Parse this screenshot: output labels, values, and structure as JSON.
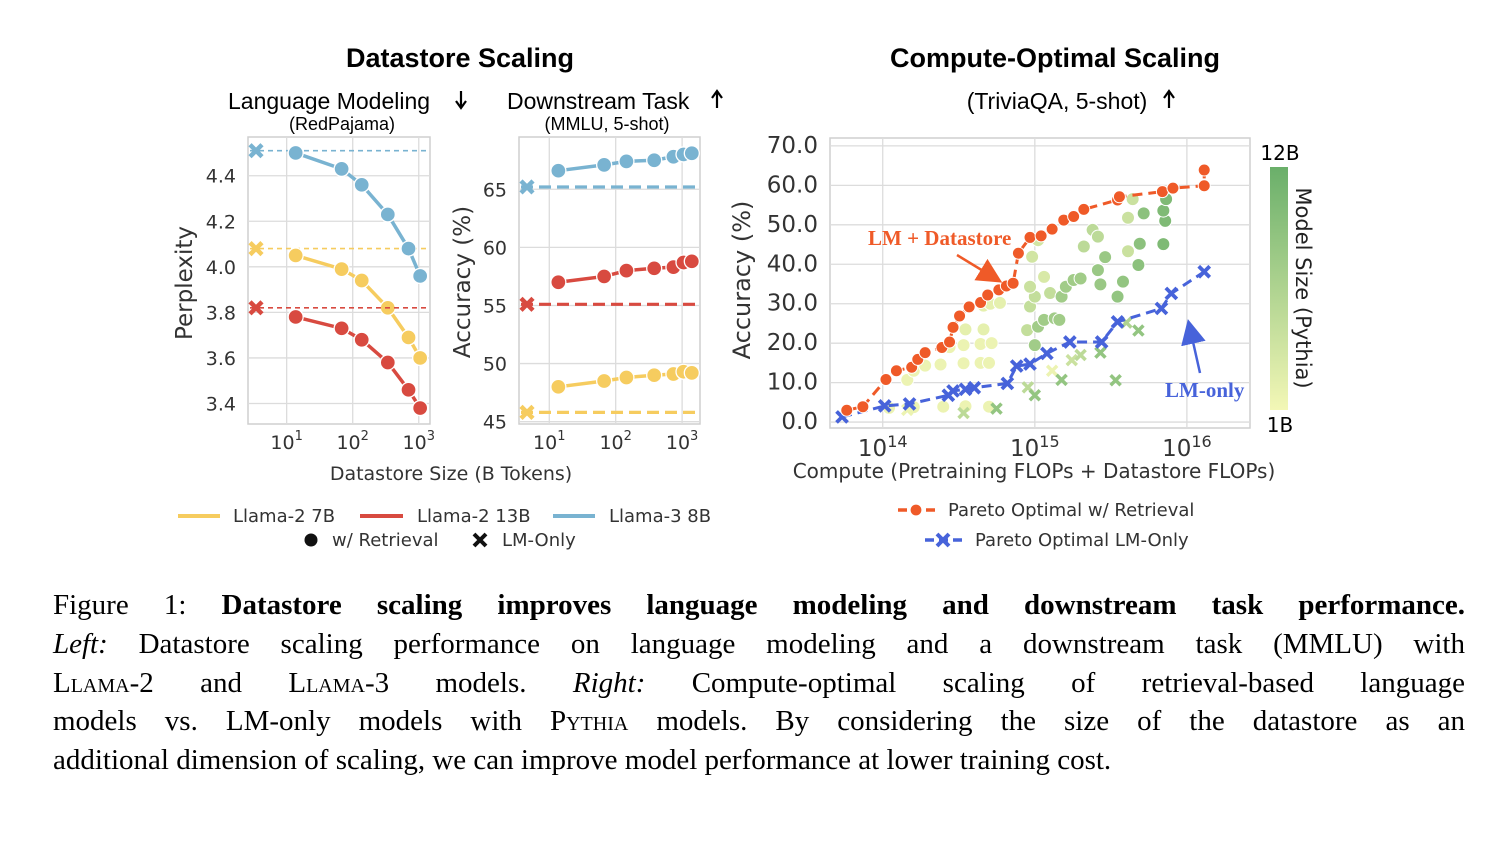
{
  "titles": {
    "left": "Datastore Scaling",
    "right": "Compute-Optimal Scaling",
    "lm_sub": "Language Modeling",
    "lm_sub2": "(RedPajama)",
    "ds_sub": "Downstream Task",
    "ds_sub2": "(MMLU, 5-shot)",
    "right_sub": "(TriviaQA, 5-shot)"
  },
  "legend_left": {
    "series": [
      "Llama-2 7B",
      "Llama-2 13B",
      "Llama-3 8B"
    ],
    "markers": [
      "w/ Retrieval",
      "LM-Only"
    ]
  },
  "legend_right": [
    "Pareto Optimal w/ Retrieval",
    "Pareto Optimal LM-Only"
  ],
  "annotations": {
    "retrieval": "LM + Datastore",
    "lm_only": "LM-only"
  },
  "colorbar": {
    "label": "Model Size (Pythia)",
    "max": "12B",
    "min": "1B",
    "colors": [
      "#f3f7b6",
      "#6aaf6a"
    ]
  },
  "colors": {
    "llama2_7b": "#f6cc5f",
    "llama2_13b": "#d84a40",
    "llama3_8b": "#79b3d1",
    "pareto_retrieval": "#ef5a28",
    "pareto_lm": "#4763da"
  },
  "chart_data": [
    {
      "type": "line",
      "title": "Language Modeling",
      "subtitle": "(RedPajama)",
      "xlabel": "Datastore Size (B Tokens)",
      "ylabel": "Perplexity",
      "xscale": "log",
      "xlim": [
        2.6,
        1480
      ],
      "ylim": [
        3.31,
        4.57
      ],
      "x_ticks": [
        "1",
        "2",
        "3"
      ],
      "y_ticks": [
        "3.4",
        "3.6",
        "3.8",
        "4.0",
        "4.2",
        "4.4"
      ],
      "grid": true,
      "x": [
        13.7,
        68,
        137,
        340,
        700,
        1050
      ],
      "series": [
        {
          "name": "Llama-2 7B",
          "color": "#f6cc5f",
          "values": [
            4.05,
            3.99,
            3.94,
            3.82,
            3.69,
            3.6
          ],
          "lm_only": 4.08
        },
        {
          "name": "Llama-2 13B",
          "color": "#d84a40",
          "values": [
            3.78,
            3.73,
            3.68,
            3.58,
            3.46,
            3.38
          ],
          "lm_only": 3.82
        },
        {
          "name": "Llama-3 8B",
          "color": "#79b3d1",
          "values": [
            4.5,
            4.43,
            4.36,
            4.23,
            4.08,
            3.96
          ],
          "lm_only": 4.51
        }
      ]
    },
    {
      "type": "line",
      "title": "Downstream Task",
      "subtitle": "(MMLU, 5-shot)",
      "xlabel": "Datastore Size (B Tokens)",
      "ylabel": "Accuracy (%)",
      "xscale": "log",
      "xlim": [
        3.5,
        1860
      ],
      "ylim": [
        44.8,
        69.5
      ],
      "x_ticks": [
        "1",
        "2",
        "3"
      ],
      "y_ticks": [
        "45",
        "50",
        "55",
        "60",
        "65"
      ],
      "grid": true,
      "x": [
        13.7,
        67,
        145,
        380,
        740,
        1050,
        1400
      ],
      "series": [
        {
          "name": "Llama-2 7B",
          "color": "#f6cc5f",
          "values": [
            48.0,
            48.5,
            48.8,
            49.0,
            49.1,
            49.3,
            49.2
          ],
          "lm_only": 45.8
        },
        {
          "name": "Llama-2 13B",
          "color": "#d84a40",
          "values": [
            57.0,
            57.5,
            58.0,
            58.2,
            58.3,
            58.7,
            58.8
          ],
          "lm_only": 55.1
        },
        {
          "name": "Llama-3 8B",
          "color": "#79b3d1",
          "values": [
            66.6,
            67.1,
            67.4,
            67.5,
            67.8,
            68.0,
            68.1
          ],
          "lm_only": 65.2
        }
      ]
    },
    {
      "type": "scatter",
      "title": "Compute-Optimal Scaling",
      "subtitle": "(TriviaQA, 5-shot)",
      "xlabel": "Compute (Pretraining FLOPs + Datastore FLOPs)",
      "ylabel": "Accuracy (%)",
      "xscale": "log",
      "xlim": [
        45000000000000.0,
        2.6e+16
      ],
      "ylim": [
        -1.5,
        72
      ],
      "x_ticks": [
        "14",
        "15",
        "16"
      ],
      "y_ticks": [
        "0.0",
        "10.0",
        "20.0",
        "30.0",
        "40.0",
        "50.0",
        "60.0",
        "70.0"
      ],
      "grid": true,
      "pareto_retrieval": {
        "name": "Pareto Optimal w/ Retrieval",
        "x": [
          58000000000000.0,
          74000000000000.0,
          105000000000000.0,
          123000000000000.0,
          155000000000000.0,
          170000000000000.0,
          190000000000000.0,
          245000000000000.0,
          275000000000000.0,
          290000000000000.0,
          320000000000000.0,
          370000000000000.0,
          440000000000000.0,
          490000000000000.0,
          580000000000000.0,
          650000000000000.0,
          720000000000000.0,
          780000000000000.0,
          930000000000000.0,
          1100000000000000.0,
          1300000000000000.0,
          1550000000000000.0,
          1800000000000000.0,
          2100000000000000.0,
          3500000000000000.0,
          3600000000000000.0,
          6900000000000000.0,
          8100000000000000.0,
          1.3e+16,
          1.3e+16
        ],
        "y": [
          3.0,
          3.9,
          10.8,
          13.0,
          13.9,
          15.9,
          17.6,
          18.9,
          20.3,
          24.0,
          26.9,
          29.2,
          30.3,
          32.2,
          33.5,
          34.5,
          35.2,
          42.8,
          46.8,
          47.2,
          48.9,
          51.2,
          52.1,
          53.9,
          56.3,
          57.1,
          58.4,
          59.3,
          59.9,
          63.9
        ]
      },
      "pareto_lm_only": {
        "name": "Pareto Optimal LM-Only",
        "x": [
          54000000000000.0,
          103000000000000.0,
          150000000000000.0,
          270000000000000.0,
          290000000000000.0,
          350000000000000.0,
          400000000000000.0,
          660000000000000.0,
          760000000000000.0,
          930000000000000.0,
          1200000000000000.0,
          1700000000000000.0,
          2750000000000000.0,
          3500000000000000.0,
          6800000000000000.0,
          7900000000000000.0,
          1.3e+16
        ],
        "y": [
          1.3,
          4.1,
          4.6,
          6.8,
          7.9,
          8.3,
          8.7,
          9.8,
          14.2,
          14.7,
          17.4,
          20.3,
          20.3,
          25.4,
          28.8,
          32.6,
          38.1
        ]
      },
      "retrieval_points": [
        [
          110000000000000.0,
          3.6,
          0.05
        ],
        [
          160000000000000.0,
          3.8,
          0.05
        ],
        [
          250000000000000.0,
          3.9,
          0.05
        ],
        [
          350000000000000.0,
          4.0,
          0.05
        ],
        [
          500000000000000.0,
          3.9,
          0.05
        ],
        [
          145000000000000.0,
          10.7,
          0.05
        ],
        [
          160000000000000.0,
          13.0,
          0.05
        ],
        [
          190000000000000.0,
          14.3,
          0.05
        ],
        [
          240000000000000.0,
          14.6,
          0.05
        ],
        [
          340000000000000.0,
          14.9,
          0.05
        ],
        [
          440000000000000.0,
          15.0,
          0.05
        ],
        [
          500000000000000.0,
          15.0,
          0.05
        ],
        [
          275000000000000.0,
          19.0,
          0.05
        ],
        [
          340000000000000.0,
          19.5,
          0.05
        ],
        [
          440000000000000.0,
          19.8,
          0.05
        ],
        [
          520000000000000.0,
          20.0,
          0.05
        ],
        [
          350000000000000.0,
          23.5,
          0.1
        ],
        [
          460000000000000.0,
          23.5,
          0.1
        ],
        [
          460000000000000.0,
          29.5,
          0.1
        ],
        [
          510000000000000.0,
          30.0,
          0.1
        ],
        [
          590000000000000.0,
          30.2,
          0.1
        ],
        [
          890000000000000.0,
          23.3,
          0.35
        ],
        [
          930000000000000.0,
          29.3,
          0.35
        ],
        [
          1000000000000000.0,
          31.8,
          0.35
        ],
        [
          1260000000000000.0,
          32.7,
          0.35
        ],
        [
          930000000000000.0,
          34.3,
          0.3
        ],
        [
          960000000000000.0,
          41.9,
          0.25
        ],
        [
          1050000000000000.0,
          46.1,
          0.25
        ],
        [
          1150000000000000.0,
          36.8,
          0.2
        ],
        [
          1000000000000000.0,
          19.5,
          0.6
        ],
        [
          1050000000000000.0,
          24.2,
          0.6
        ],
        [
          1150000000000000.0,
          25.9,
          0.6
        ],
        [
          1350000000000000.0,
          26.3,
          0.6
        ],
        [
          1450000000000000.0,
          25.9,
          0.6
        ],
        [
          1500000000000000.0,
          31.8,
          0.6
        ],
        [
          1600000000000000.0,
          34.3,
          0.6
        ],
        [
          1800000000000000.0,
          36.0,
          0.6
        ],
        [
          2000000000000000.0,
          36.4,
          0.6
        ],
        [
          2100000000000000.0,
          44.5,
          0.4
        ],
        [
          2400000000000000.0,
          48.7,
          0.4
        ],
        [
          2600000000000000.0,
          47.0,
          0.4
        ],
        [
          2600000000000000.0,
          38.5,
          0.65
        ],
        [
          2700000000000000.0,
          34.9,
          0.65
        ],
        [
          2900000000000000.0,
          41.8,
          0.65
        ],
        [
          3500000000000000.0,
          31.8,
          0.7
        ],
        [
          3800000000000000.0,
          35.6,
          0.7
        ],
        [
          4100000000000000.0,
          43.3,
          0.3
        ],
        [
          4100000000000000.0,
          51.8,
          0.3
        ],
        [
          4400000000000000.0,
          56.5,
          0.3
        ],
        [
          4800000000000000.0,
          39.8,
          0.75
        ],
        [
          4900000000000000.0,
          45.2,
          0.75
        ],
        [
          5200000000000000.0,
          52.9,
          0.75
        ],
        [
          7000000000000000.0,
          45.1,
          0.85
        ],
        [
          7200000000000000.0,
          51.0,
          0.85
        ],
        [
          7000000000000000.0,
          53.6,
          0.85
        ],
        [
          7300000000000000.0,
          56.5,
          0.85
        ]
      ],
      "lm_only_points": [
        [
          145000000000000.0,
          3.1,
          0.05
        ],
        [
          340000000000000.0,
          2.3,
          0.4
        ],
        [
          560000000000000.0,
          3.4,
          0.7
        ],
        [
          900000000000000.0,
          8.8,
          0.4
        ],
        [
          1000000000000000.0,
          6.8,
          0.7
        ],
        [
          1300000000000000.0,
          13.0,
          0.05
        ],
        [
          1500000000000000.0,
          10.7,
          0.7
        ],
        [
          1750000000000000.0,
          15.7,
          0.3
        ],
        [
          2000000000000000.0,
          17.0,
          0.4
        ],
        [
          2700000000000000.0,
          17.6,
          0.7
        ],
        [
          3400000000000000.0,
          10.6,
          0.7
        ],
        [
          4000000000000000.0,
          25.2,
          0.5
        ],
        [
          4800000000000000.0,
          23.2,
          0.7
        ]
      ]
    }
  ],
  "caption": {
    "fig_label": "Figure 1: ",
    "bold": "Datastore scaling improves language modeling and downstream task performance.",
    "left_label": "Left:",
    "line2": " Datastore scaling performance on language modeling and a downstream task (MMLU) with",
    "llama2": "Llama-2",
    "and": " and ",
    "llama3": "Llama-3",
    "models_dot": " models. ",
    "right_label": "Right:",
    "line3_rest": " Compute-optimal scaling of retrieval-based language",
    "line4_a": "models vs. LM-only models with ",
    "pythia": "Pythia",
    "line4_b": " models. By considering the size of the datastore as an",
    "line5": "additional dimension of scaling, we can improve model performance at lower training cost."
  }
}
